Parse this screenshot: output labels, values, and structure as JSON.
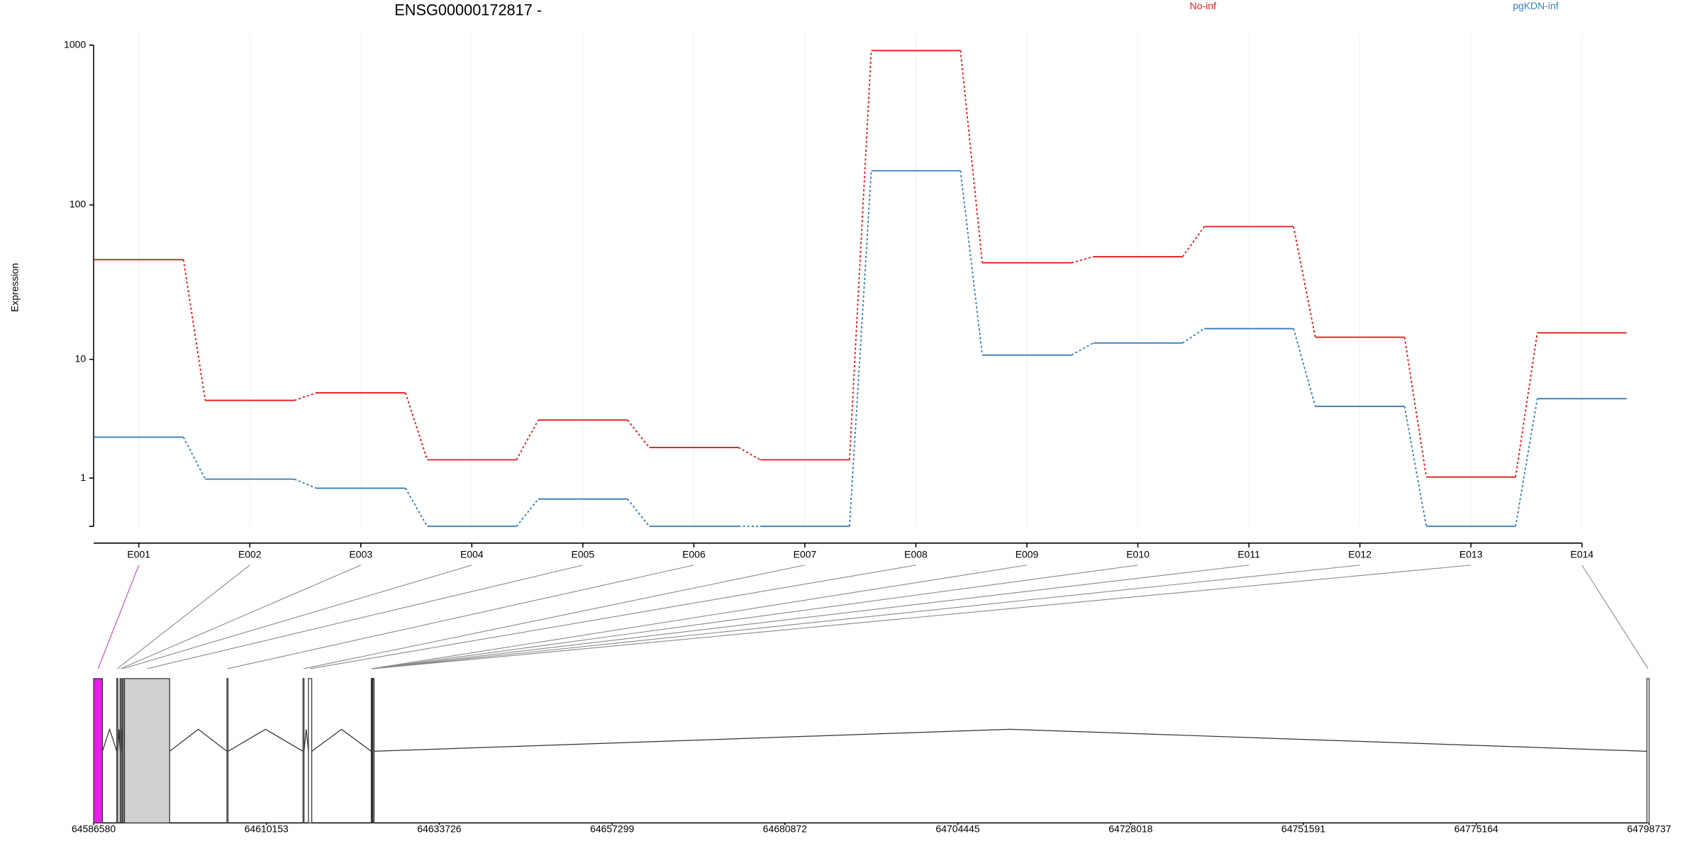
{
  "chart_data": [
    {
      "type": "line",
      "title": "ENSG00000172817 -",
      "y_label": "Expression",
      "yscale": "log1p",
      "grid": true,
      "categories": [
        "E001",
        "E002",
        "E003",
        "E004",
        "E005",
        "E006",
        "E007",
        "E008",
        "E009",
        "E010",
        "E011",
        "E012",
        "E013",
        "E014"
      ],
      "ylim": [
        0,
        1000
      ],
      "yticks": [
        1,
        10,
        100,
        1000
      ],
      "series": [
        {
          "name": "No-inf",
          "color": "#e41a1c",
          "values": [
            45,
            5.1,
            5.8,
            1.6,
            3.6,
            2.1,
            1.6,
            925,
            43,
            47,
            73,
            14.1,
            1.03,
            15.1
          ]
        },
        {
          "name": "pgKDN-inf",
          "color": "#377eb8",
          "values": [
            2.6,
            0.97,
            0.73,
            0,
            0.48,
            0,
            0,
            164,
            10.7,
            12.9,
            16.1,
            4.6,
            0,
            5.25
          ]
        }
      ]
    },
    {
      "type": "exons",
      "xlim": [
        64586580,
        64798737
      ],
      "xticks": [
        64586580,
        64610153,
        64633726,
        64657299,
        64680872,
        64704445,
        64728018,
        64751591,
        64775164,
        64798737
      ],
      "starts": [
        64586580,
        64589735,
        64590186,
        64590487,
        64590787,
        64604760,
        64615127,
        64615878,
        64624443,
        64624500,
        64624560,
        64624620,
        64624680,
        64798437
      ],
      "ends": [
        64587782,
        64589885,
        64590336,
        64590637,
        64596947,
        64604910,
        64615277,
        64616329,
        64624500,
        64624560,
        64624620,
        64624680,
        64624740,
        64798737
      ],
      "colors": [
        "#e61ee6",
        "#ffffff",
        "#ffffff",
        "#ffffff",
        "#d0d0d0",
        "#ffffff",
        "#ffffff",
        "#ffffff",
        "#ffffff",
        "#ffffff",
        "#ffffff",
        "#ffffff",
        "#ffffff",
        "#ffffff"
      ]
    }
  ]
}
